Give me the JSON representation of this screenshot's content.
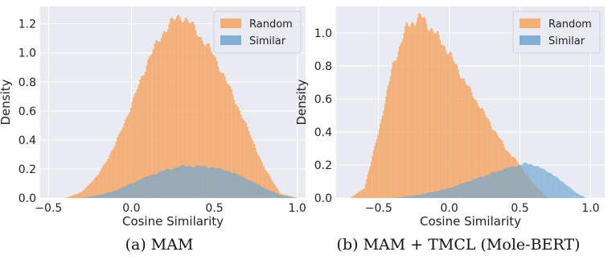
{
  "chart_data": [
    {
      "type": "histogram",
      "panel": "a",
      "xlabel": "Cosine Similarity",
      "ylabel": "Density",
      "xlim": [
        -0.55,
        1.05
      ],
      "ylim": [
        0,
        1.32
      ],
      "xticks": [
        -0.5,
        0.0,
        0.5,
        1.0
      ],
      "xtick_labels": [
        "−0.5",
        "0.0",
        "0.5",
        "1.0"
      ],
      "yticks": [
        0.0,
        0.2,
        0.4,
        0.6,
        0.8,
        1.0,
        1.2
      ],
      "ytick_labels": [
        "0.0",
        "0.2",
        "0.4",
        "0.6",
        "0.8",
        "1.0",
        "1.2"
      ],
      "grid": true,
      "legend_position": "top-right",
      "series": [
        {
          "name": "Random",
          "color": "#f5a462",
          "x": [
            -0.4,
            -0.3,
            -0.2,
            -0.1,
            0.0,
            0.1,
            0.2,
            0.25,
            0.3,
            0.35,
            0.4,
            0.5,
            0.6,
            0.7,
            0.8,
            0.9,
            1.0
          ],
          "y": [
            0.0,
            0.04,
            0.16,
            0.36,
            0.64,
            0.95,
            1.16,
            1.22,
            1.26,
            1.21,
            1.14,
            0.98,
            0.74,
            0.48,
            0.21,
            0.03,
            0.0
          ]
        },
        {
          "name": "Similar",
          "color": "#6fa6d2",
          "x": [
            -0.3,
            -0.2,
            -0.1,
            0.0,
            0.1,
            0.2,
            0.3,
            0.4,
            0.5,
            0.6,
            0.7,
            0.8,
            0.9,
            1.0
          ],
          "y": [
            0.0,
            0.02,
            0.05,
            0.1,
            0.15,
            0.19,
            0.22,
            0.22,
            0.21,
            0.18,
            0.13,
            0.07,
            0.02,
            0.0
          ]
        }
      ]
    },
    {
      "type": "histogram",
      "panel": "b",
      "xlabel": "Cosine Similarity",
      "ylabel": "Density",
      "xlim": [
        -0.8,
        1.1
      ],
      "ylim": [
        0,
        1.16
      ],
      "xticks": [
        -0.5,
        0.0,
        0.5,
        1.0
      ],
      "xtick_labels": [
        "−0.5",
        "0.0",
        "0.5",
        "1.0"
      ],
      "yticks": [
        0.0,
        0.2,
        0.4,
        0.6,
        0.8,
        1.0
      ],
      "ytick_labels": [
        "0.0",
        "0.2",
        "0.4",
        "0.6",
        "0.8",
        "1.0"
      ],
      "grid": true,
      "legend_position": "top-right",
      "series": [
        {
          "name": "Random",
          "color": "#f5a462",
          "x": [
            -0.7,
            -0.6,
            -0.5,
            -0.4,
            -0.3,
            -0.2,
            -0.1,
            0.0,
            0.1,
            0.2,
            0.3,
            0.4,
            0.5,
            0.6,
            0.7
          ],
          "y": [
            0.0,
            0.06,
            0.4,
            0.8,
            1.04,
            1.1,
            1.0,
            0.88,
            0.72,
            0.58,
            0.44,
            0.3,
            0.2,
            0.08,
            0.0
          ]
        },
        {
          "name": "Similar",
          "color": "#6fa6d2",
          "x": [
            -0.4,
            -0.3,
            -0.2,
            -0.1,
            0.0,
            0.1,
            0.2,
            0.3,
            0.4,
            0.5,
            0.55,
            0.6,
            0.7,
            0.8,
            0.9,
            0.97
          ],
          "y": [
            0.0,
            0.01,
            0.02,
            0.04,
            0.06,
            0.09,
            0.12,
            0.15,
            0.18,
            0.2,
            0.21,
            0.2,
            0.16,
            0.1,
            0.03,
            0.0
          ]
        }
      ]
    }
  ],
  "captions": {
    "a": "(a) MAM",
    "b": "(b) MAM + TMCL (Mole-BERT)"
  }
}
